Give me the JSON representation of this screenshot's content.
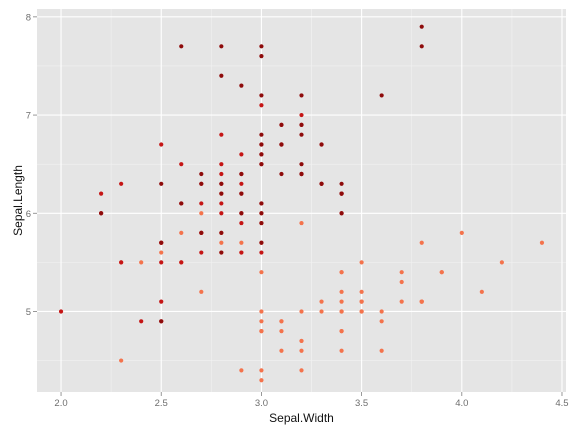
{
  "chart_data": {
    "type": "scatter",
    "xlabel": "Sepal.Width",
    "ylabel": "Sepal.Length",
    "xlim": [
      1.88,
      4.52
    ],
    "ylim": [
      4.18,
      8.08
    ],
    "x_ticks": [
      2.0,
      2.5,
      3.0,
      3.5,
      4.0,
      4.5
    ],
    "x_tick_labels": [
      "2.0",
      "2.5",
      "3.0",
      "3.5",
      "4.0",
      "4.5"
    ],
    "y_ticks": [
      5,
      6,
      7,
      8
    ],
    "y_tick_labels": [
      "5",
      "6",
      "7",
      "8"
    ],
    "grid": true,
    "series": [
      {
        "color": "#F4734C",
        "points": [
          [
            3.5,
            5.1
          ],
          [
            3.0,
            4.9
          ],
          [
            3.2,
            4.7
          ],
          [
            3.1,
            4.6
          ],
          [
            3.6,
            5.0
          ],
          [
            3.9,
            5.4
          ],
          [
            3.4,
            4.6
          ],
          [
            3.4,
            5.0
          ],
          [
            2.9,
            4.4
          ],
          [
            3.1,
            4.9
          ],
          [
            3.7,
            5.4
          ],
          [
            3.4,
            4.8
          ],
          [
            3.0,
            4.8
          ],
          [
            3.0,
            4.3
          ],
          [
            4.0,
            5.8
          ],
          [
            4.4,
            5.7
          ],
          [
            3.9,
            5.4
          ],
          [
            3.5,
            5.1
          ],
          [
            3.8,
            5.7
          ],
          [
            3.8,
            5.1
          ],
          [
            3.4,
            5.4
          ],
          [
            3.7,
            5.1
          ],
          [
            3.6,
            4.6
          ],
          [
            3.3,
            5.1
          ],
          [
            3.4,
            4.8
          ],
          [
            3.0,
            5.0
          ],
          [
            3.4,
            5.0
          ],
          [
            3.5,
            5.2
          ],
          [
            3.4,
            5.2
          ],
          [
            3.2,
            4.7
          ],
          [
            3.1,
            4.8
          ],
          [
            3.4,
            5.4
          ],
          [
            4.1,
            5.2
          ],
          [
            4.2,
            5.5
          ],
          [
            3.1,
            4.9
          ],
          [
            3.2,
            5.0
          ],
          [
            3.5,
            5.5
          ],
          [
            3.6,
            4.9
          ],
          [
            3.0,
            4.4
          ],
          [
            3.4,
            5.1
          ],
          [
            3.5,
            5.0
          ],
          [
            2.3,
            4.5
          ],
          [
            3.2,
            4.4
          ],
          [
            3.5,
            5.0
          ],
          [
            3.8,
            5.1
          ],
          [
            3.0,
            4.8
          ],
          [
            3.8,
            5.1
          ],
          [
            3.2,
            4.6
          ],
          [
            3.7,
            5.3
          ],
          [
            3.3,
            5.0
          ],
          [
            2.6,
            5.8
          ],
          [
            2.7,
            6.0
          ],
          [
            2.9,
            5.7
          ],
          [
            3.0,
            5.4
          ],
          [
            2.8,
            5.7
          ],
          [
            3.0,
            5.9
          ],
          [
            2.5,
            5.6
          ],
          [
            2.4,
            5.5
          ],
          [
            2.3,
            5.5
          ],
          [
            2.6,
            5.5
          ],
          [
            3.2,
            5.9
          ],
          [
            2.7,
            5.8
          ],
          [
            2.8,
            5.8
          ],
          [
            2.5,
            5.7
          ],
          [
            2.9,
            5.6
          ],
          [
            3.0,
            5.7
          ],
          [
            2.7,
            5.2
          ],
          [
            3.0,
            6.0
          ],
          [
            2.8,
            5.6
          ],
          [
            2.8,
            6.2
          ]
        ]
      },
      {
        "color": "#C51515",
        "points": [
          [
            2.0,
            5.0
          ],
          [
            2.2,
            6.2
          ],
          [
            2.3,
            6.3
          ],
          [
            2.3,
            5.5
          ],
          [
            2.5,
            5.5
          ],
          [
            2.5,
            5.7
          ],
          [
            2.5,
            5.1
          ],
          [
            2.6,
            5.5
          ],
          [
            2.7,
            5.6
          ],
          [
            2.7,
            6.3
          ],
          [
            2.8,
            6.8
          ],
          [
            2.8,
            6.5
          ],
          [
            2.8,
            6.4
          ],
          [
            2.9,
            6.6
          ],
          [
            2.9,
            6.4
          ],
          [
            2.9,
            6.0
          ],
          [
            2.9,
            6.2
          ],
          [
            2.9,
            5.9
          ],
          [
            2.9,
            5.6
          ],
          [
            2.9,
            6.3
          ],
          [
            2.2,
            6.0
          ],
          [
            2.4,
            4.9
          ],
          [
            2.5,
            4.9
          ],
          [
            2.6,
            6.1
          ],
          [
            2.7,
            6.1
          ],
          [
            2.7,
            5.8
          ],
          [
            2.8,
            6.0
          ],
          [
            2.8,
            6.1
          ],
          [
            2.8,
            6.3
          ],
          [
            3.0,
            6.7
          ],
          [
            3.0,
            6.6
          ],
          [
            3.0,
            6.5
          ],
          [
            3.0,
            6.1
          ],
          [
            3.0,
            5.6
          ],
          [
            3.1,
            6.9
          ],
          [
            3.1,
            6.7
          ],
          [
            3.2,
            7.0
          ],
          [
            3.2,
            6.4
          ],
          [
            3.3,
            6.3
          ],
          [
            3.4,
            6.2
          ],
          [
            3.4,
            6.0
          ],
          [
            3.3,
            6.7
          ],
          [
            3.2,
            6.9
          ],
          [
            3.0,
            7.1
          ],
          [
            2.5,
            6.7
          ],
          [
            2.6,
            6.5
          ]
        ]
      },
      {
        "color": "#8E0B0B",
        "points": [
          [
            2.5,
            6.3
          ],
          [
            2.6,
            7.7
          ],
          [
            2.7,
            6.4
          ],
          [
            2.7,
            6.3
          ],
          [
            2.7,
            5.8
          ],
          [
            2.8,
            7.7
          ],
          [
            2.8,
            7.4
          ],
          [
            2.8,
            6.3
          ],
          [
            2.8,
            6.2
          ],
          [
            2.8,
            5.8
          ],
          [
            2.8,
            5.6
          ],
          [
            2.9,
            7.3
          ],
          [
            2.9,
            6.4
          ],
          [
            3.0,
            7.7
          ],
          [
            3.0,
            7.6
          ],
          [
            3.0,
            7.2
          ],
          [
            3.0,
            6.8
          ],
          [
            3.0,
            6.7
          ],
          [
            3.0,
            6.5
          ],
          [
            3.0,
            6.1
          ],
          [
            3.0,
            6.0
          ],
          [
            3.0,
            5.9
          ],
          [
            3.1,
            6.9
          ],
          [
            3.1,
            6.4
          ],
          [
            3.1,
            6.7
          ],
          [
            3.2,
            7.2
          ],
          [
            3.2,
            6.9
          ],
          [
            3.2,
            6.8
          ],
          [
            3.2,
            6.5
          ],
          [
            3.2,
            6.4
          ],
          [
            3.3,
            6.7
          ],
          [
            3.3,
            6.3
          ],
          [
            3.4,
            6.3
          ],
          [
            3.4,
            6.2
          ],
          [
            3.4,
            6.0
          ],
          [
            3.6,
            7.2
          ],
          [
            3.8,
            7.9
          ],
          [
            3.8,
            7.7
          ],
          [
            2.2,
            6.0
          ],
          [
            2.5,
            5.7
          ],
          [
            2.5,
            4.9
          ],
          [
            2.6,
            6.1
          ],
          [
            2.9,
            6.2
          ],
          [
            2.9,
            6.0
          ],
          [
            3.0,
            5.7
          ],
          [
            3.0,
            6.6
          ],
          [
            3.1,
            6.7
          ],
          [
            3.2,
            6.4
          ],
          [
            3.3,
            6.3
          ],
          [
            3.4,
            6.2
          ]
        ]
      }
    ]
  }
}
